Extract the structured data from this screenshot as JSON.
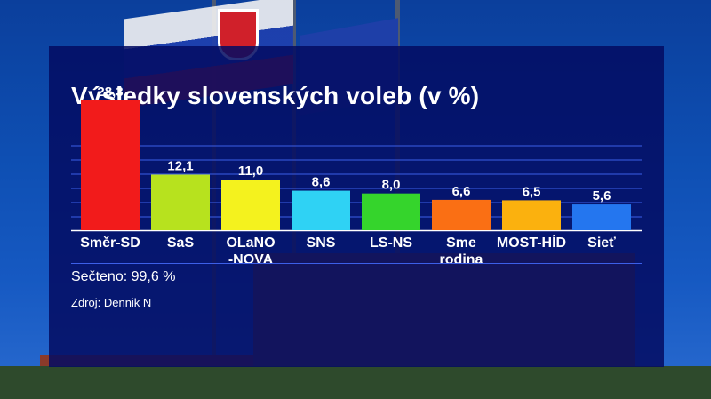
{
  "chart_data": {
    "type": "bar",
    "title": "Výsledky slovenských voleb (v %)",
    "categories": [
      "Směr-SD",
      "SaS",
      "OLaNO\n-NOVA",
      "SNS",
      "LS-NS",
      "Sme\nrodina",
      "MOST-HÍD",
      "Sieť"
    ],
    "values": [
      28.3,
      12.1,
      11.0,
      8.6,
      8.0,
      6.6,
      6.5,
      5.6
    ],
    "value_labels": [
      "28,3",
      "12,1",
      "11,0",
      "8,6",
      "8,0",
      "6,6",
      "6,5",
      "5,6"
    ],
    "colors": [
      "#f21b1b",
      "#b7e21e",
      "#f4f21e",
      "#2fd2f4",
      "#35d42c",
      "#fa6f14",
      "#fbb10e",
      "#2476ef"
    ],
    "xlabel": "",
    "ylabel": "",
    "ylim": [
      0,
      30
    ],
    "grid": true,
    "legend": "none"
  },
  "footer": {
    "counted": "Sečteno: 99,6 %",
    "source": "Zdroj: Dennik N"
  },
  "theme": {
    "panel_color": "#050c62",
    "gridline_color": "#3c5fe8",
    "text_color": "#ffffff"
  }
}
